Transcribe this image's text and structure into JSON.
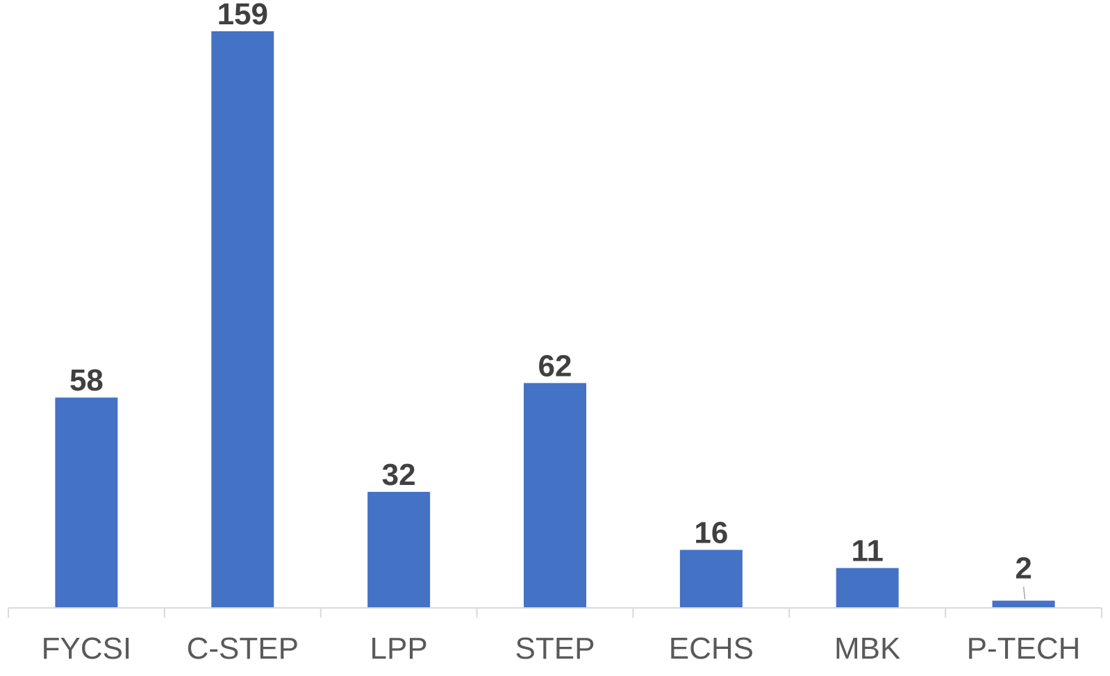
{
  "chart_data": {
    "type": "bar",
    "categories": [
      "FYCSI",
      "C-STEP",
      "LPP",
      "STEP",
      "ECHS",
      "MBK",
      "P-TECH"
    ],
    "values": [
      58,
      159,
      32,
      62,
      16,
      11,
      2
    ],
    "title": "",
    "xlabel": "",
    "ylabel": "",
    "ylim": [
      0,
      159
    ],
    "grid": false,
    "legend": "none",
    "colors": {
      "bar": "#4472C4",
      "axis": "#d9d9d9",
      "data_label": "#404040",
      "tick_label": "#595959"
    }
  }
}
